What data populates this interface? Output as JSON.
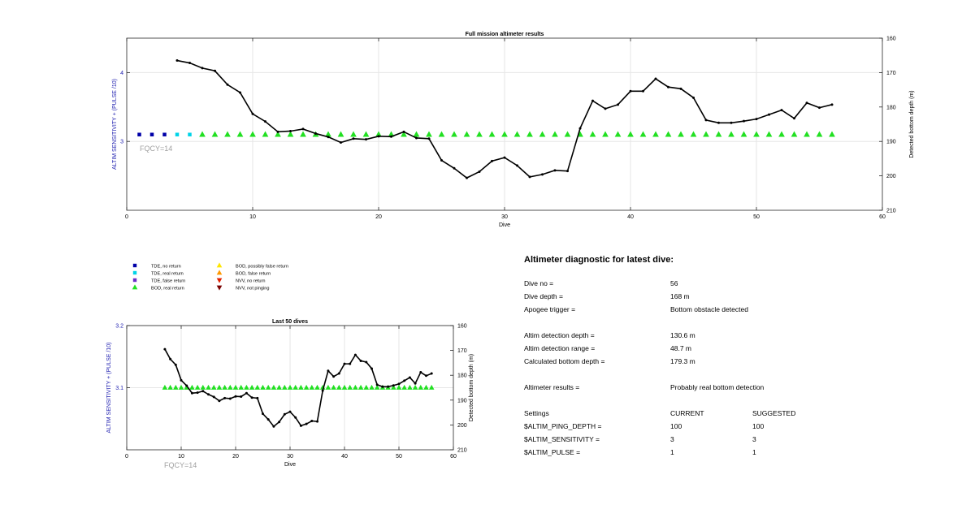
{
  "colors": {
    "tde_no_return": "#0000a8",
    "tde_real_return": "#00d4e8",
    "tde_false_return": "#6a2cc8",
    "bod_real_return": "#22e022",
    "bod_possibly_false": "#ffe600",
    "bod_false_return": "#ff9900",
    "nvv_no_return": "#e02000",
    "nvv_not_pinging": "#7a0000",
    "depth_line": "#000000",
    "left_axis_label": "#2020b0"
  },
  "legend": {
    "items": [
      {
        "label": "TDE, no return",
        "marker": "square",
        "color": "#0000a8"
      },
      {
        "label": "TDE, real return",
        "marker": "square",
        "color": "#00d4e8"
      },
      {
        "label": "TDE, false return",
        "marker": "square",
        "color": "#6a2cc8"
      },
      {
        "label": "BOD, real return",
        "marker": "triangle-up",
        "color": "#22e022"
      },
      {
        "label": "BOD, possibly false return",
        "marker": "triangle-up",
        "color": "#ffe600"
      },
      {
        "label": "BOD, false return",
        "marker": "triangle-up",
        "color": "#ff9900"
      },
      {
        "label": "NVV, no return",
        "marker": "triangle-down",
        "color": "#e02000"
      },
      {
        "label": "NVV, not pinging",
        "marker": "triangle-down",
        "color": "#7a0000"
      }
    ]
  },
  "chart_data": [
    {
      "type": "scatter",
      "title": "Full mission altimeter results",
      "xlabel": "Dive",
      "ylabel_left": "ALTIM SENSITIVITY + (PULSE /10)",
      "ylabel_right": "Detected bottom depth (m)",
      "xlim": [
        0,
        60
      ],
      "ylim_left": [
        2,
        4.5
      ],
      "ylim_right": [
        210,
        160
      ],
      "x_ticks": [
        0,
        10,
        20,
        30,
        40,
        50,
        60
      ],
      "y_ticks_left": [
        3,
        4
      ],
      "y_ticks_right": [
        160,
        170,
        180,
        190,
        200,
        210
      ],
      "annotation": "FQCY=14",
      "grid": true,
      "settings_series": [
        {
          "name": "TDE, no return",
          "x": [
            1,
            2,
            3
          ],
          "y": [
            3.1,
            3.1,
            3.1
          ]
        },
        {
          "name": "TDE, real return",
          "x": [
            4,
            5
          ],
          "y": [
            3.1,
            3.1
          ]
        },
        {
          "name": "BOD, real return",
          "x": [
            6,
            7,
            8,
            9,
            10,
            11,
            12,
            13,
            14,
            15,
            16,
            17,
            18,
            19,
            20,
            21,
            22,
            23,
            24,
            25,
            26,
            27,
            28,
            29,
            30,
            31,
            32,
            33,
            34,
            35,
            36,
            37,
            38,
            39,
            40,
            41,
            42,
            43,
            44,
            45,
            46,
            47,
            48,
            49,
            50,
            51,
            52,
            53,
            54,
            55,
            56
          ],
          "y": [
            3.1,
            3.1,
            3.1,
            3.1,
            3.1,
            3.1,
            3.1,
            3.1,
            3.1,
            3.1,
            3.1,
            3.1,
            3.1,
            3.1,
            3.1,
            3.1,
            3.1,
            3.1,
            3.1,
            3.1,
            3.1,
            3.1,
            3.1,
            3.1,
            3.1,
            3.1,
            3.1,
            3.1,
            3.1,
            3.1,
            3.1,
            3.1,
            3.1,
            3.1,
            3.1,
            3.1,
            3.1,
            3.1,
            3.1,
            3.1,
            3.1,
            3.1,
            3.1,
            3.1,
            3.1,
            3.1,
            3.1,
            3.1,
            3.1,
            3.1,
            3.1
          ]
        }
      ],
      "bottom_depth": {
        "x": [
          4,
          5,
          6,
          7,
          8,
          9,
          10,
          11,
          12,
          13,
          14,
          15,
          16,
          17,
          18,
          19,
          20,
          21,
          22,
          23,
          24,
          25,
          26,
          27,
          28,
          29,
          30,
          31,
          32,
          33,
          34,
          35,
          36,
          37,
          38,
          39,
          40,
          41,
          42,
          43,
          44,
          45,
          46,
          47,
          48,
          49,
          50,
          51,
          52,
          53,
          54,
          55,
          56
        ],
        "y": [
          166.5,
          167.2,
          168.7,
          169.5,
          173.5,
          175.8,
          182,
          184.2,
          187.2,
          187,
          186.4,
          187.7,
          188.7,
          190.3,
          189.2,
          189.4,
          188.5,
          188.6,
          187.2,
          189,
          189.2,
          195.5,
          197.8,
          200.6,
          198.8,
          195.7,
          194.7,
          197,
          200.3,
          199.6,
          198.4,
          198.6,
          186.2,
          178.2,
          180.5,
          179.3,
          175.4,
          175.4,
          171.8,
          174.2,
          174.7,
          177.3,
          183.8,
          184.6,
          184.6,
          184.1,
          183.5,
          182.2,
          180.9,
          183.3,
          178.8,
          180.2,
          179.3
        ]
      }
    },
    {
      "type": "scatter",
      "title": "Last 50 dives",
      "xlabel": "Dive",
      "ylabel_left": "ALTIM SENSITIVITY + (PULSE /10)",
      "ylabel_right": "Detected bottom depth (m)",
      "xlim": [
        0,
        60
      ],
      "ylim_left": [
        3.0,
        3.2
      ],
      "ylim_right": [
        210,
        160
      ],
      "x_ticks": [
        0,
        10,
        20,
        30,
        40,
        50,
        60
      ],
      "y_ticks_left": [
        3.1,
        3.2
      ],
      "y_ticks_right": [
        160,
        170,
        180,
        190,
        200,
        210
      ],
      "annotation": "FQCY=14",
      "grid": true,
      "settings_series": [
        {
          "name": "BOD, real return",
          "x": [
            7,
            8,
            9,
            10,
            11,
            12,
            13,
            14,
            15,
            16,
            17,
            18,
            19,
            20,
            21,
            22,
            23,
            24,
            25,
            26,
            27,
            28,
            29,
            30,
            31,
            32,
            33,
            34,
            35,
            36,
            37,
            38,
            39,
            40,
            41,
            42,
            43,
            44,
            45,
            46,
            47,
            48,
            49,
            50,
            51,
            52,
            53,
            54,
            55,
            56
          ],
          "y": [
            3.1,
            3.1,
            3.1,
            3.1,
            3.1,
            3.1,
            3.1,
            3.1,
            3.1,
            3.1,
            3.1,
            3.1,
            3.1,
            3.1,
            3.1,
            3.1,
            3.1,
            3.1,
            3.1,
            3.1,
            3.1,
            3.1,
            3.1,
            3.1,
            3.1,
            3.1,
            3.1,
            3.1,
            3.1,
            3.1,
            3.1,
            3.1,
            3.1,
            3.1,
            3.1,
            3.1,
            3.1,
            3.1,
            3.1,
            3.1,
            3.1,
            3.1,
            3.1,
            3.1,
            3.1,
            3.1,
            3.1,
            3.1,
            3.1,
            3.1
          ]
        }
      ],
      "bottom_depth": {
        "x": [
          7,
          8,
          9,
          10,
          11,
          12,
          13,
          14,
          15,
          16,
          17,
          18,
          19,
          20,
          21,
          22,
          23,
          24,
          25,
          26,
          27,
          28,
          29,
          30,
          31,
          32,
          33,
          34,
          35,
          36,
          37,
          38,
          39,
          40,
          41,
          42,
          43,
          44,
          45,
          46,
          47,
          48,
          49,
          50,
          51,
          52,
          53,
          54,
          55,
          56
        ],
        "y": [
          169.5,
          173.5,
          175.8,
          182,
          184.2,
          187.2,
          187,
          186.4,
          187.7,
          188.7,
          190.3,
          189.2,
          189.4,
          188.5,
          188.6,
          187.2,
          189,
          189.2,
          195.5,
          197.8,
          200.6,
          198.8,
          195.7,
          194.7,
          197,
          200.3,
          199.6,
          198.4,
          198.6,
          186.2,
          178.2,
          180.5,
          179.3,
          175.4,
          175.4,
          171.8,
          174.2,
          174.7,
          177.3,
          183.8,
          184.6,
          184.6,
          184.1,
          183.5,
          182.2,
          180.9,
          183.3,
          178.8,
          180.2,
          179.3
        ]
      }
    }
  ],
  "diagnostic": {
    "title": "Altimeter diagnostic for latest dive:",
    "dive_block": [
      {
        "label": "Dive no =",
        "value": "56"
      },
      {
        "label": "Dive depth =",
        "value": "168 m"
      },
      {
        "label": "Apogee trigger =",
        "value": "Bottom obstacle detected"
      }
    ],
    "detection_block": [
      {
        "label": "Altim detection depth =",
        "value": "130.6 m"
      },
      {
        "label": "Altim detection range =",
        "value": "48.7 m"
      },
      {
        "label": "Calculated bottom depth =",
        "value": "179.3 m"
      }
    ],
    "results": {
      "label": "Altimeter results =",
      "value": "Probably real bottom detection"
    },
    "settings_header": {
      "label": "Settings",
      "current": "CURRENT",
      "suggested": "SUGGESTED"
    },
    "settings": [
      {
        "label": "$ALTIM_PING_DEPTH =",
        "current": "100",
        "suggested": "100"
      },
      {
        "label": "$ALTIM_SENSITIVITY =",
        "current": "3",
        "suggested": "3"
      },
      {
        "label": "$ALTIM_PULSE =",
        "current": "1",
        "suggested": "1"
      }
    ]
  }
}
